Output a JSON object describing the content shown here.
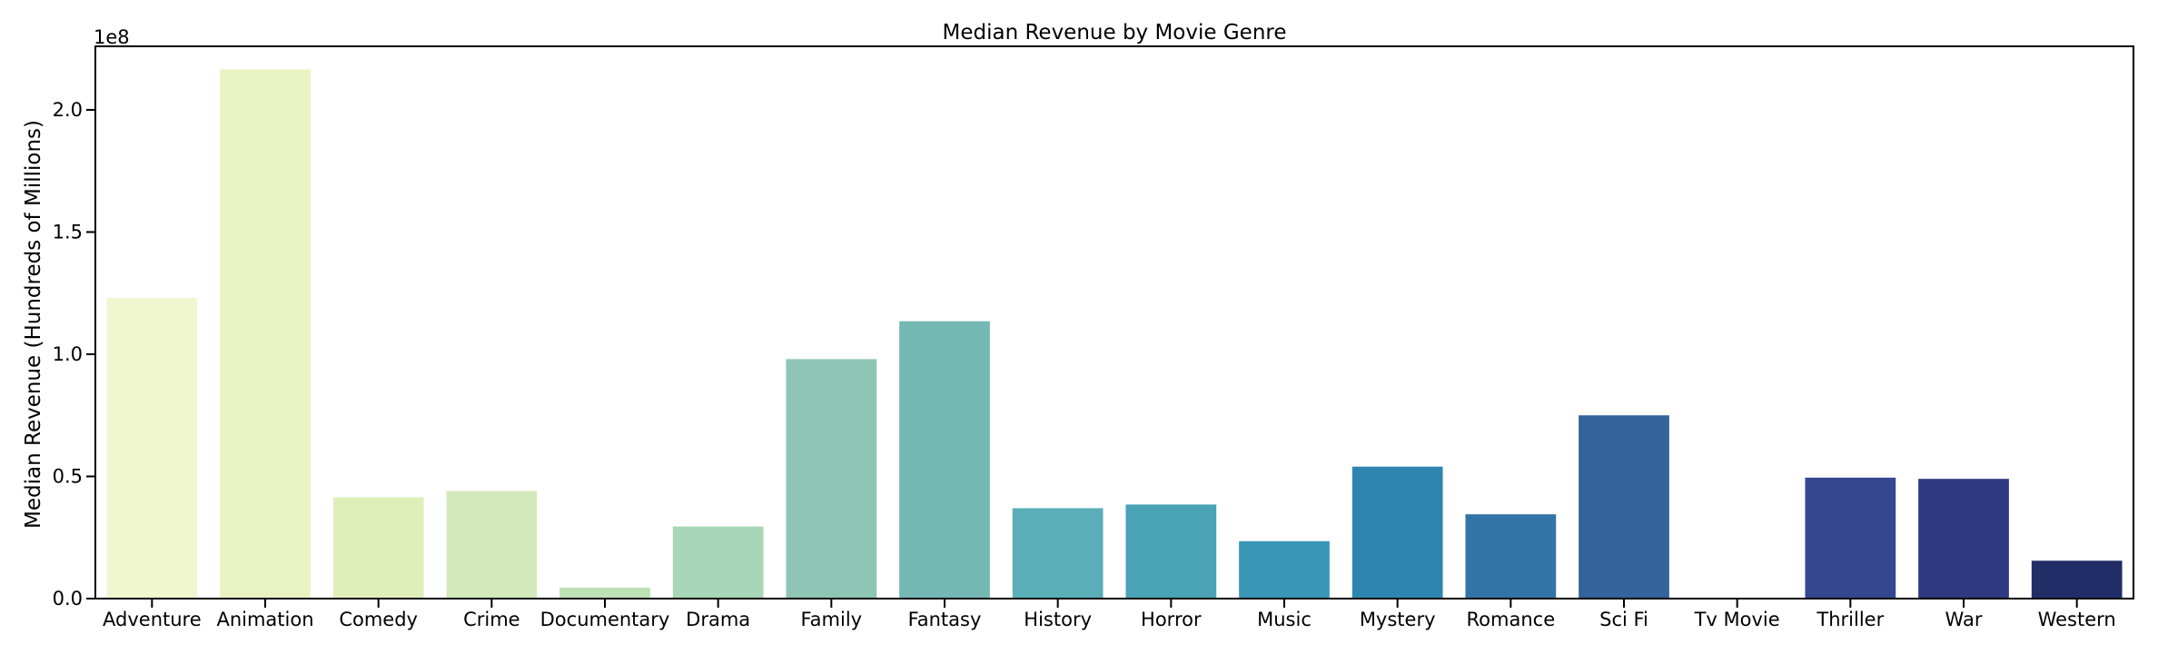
{
  "chart_data": {
    "type": "bar",
    "title": "Median Revenue by Movie Genre",
    "xlabel": "",
    "ylabel": "Median Revenue (Hundreds of Millions)",
    "offset_label": "1e8",
    "ylim": [
      0,
      2.26
    ],
    "yticks": [
      0.0,
      0.5,
      1.0,
      1.5,
      2.0
    ],
    "ytick_labels": [
      "0.0",
      "0.5",
      "1.0",
      "1.5",
      "2.0"
    ],
    "grid": false,
    "categories": [
      "Adventure",
      "Animation",
      "Comedy",
      "Crime",
      "Documentary",
      "Drama",
      "Family",
      "Fantasy",
      "History",
      "Horror",
      "Music",
      "Mystery",
      "Romance",
      "Sci Fi",
      "Tv Movie",
      "Thriller",
      "War",
      "Western"
    ],
    "values": [
      1.23,
      2.165,
      0.415,
      0.44,
      0.045,
      0.295,
      0.98,
      1.135,
      0.37,
      0.385,
      0.235,
      0.54,
      0.345,
      0.75,
      0.0,
      0.495,
      0.49,
      0.155
    ],
    "colors": [
      "#f0f6cf",
      "#e9f3c1",
      "#dfefba",
      "#d3e9bb",
      "#bde3b5",
      "#a8d6b8",
      "#8ec5b4",
      "#74b8b4",
      "#5aaeb8",
      "#4aa3b6",
      "#3996b7",
      "#2e86b0",
      "#3374a6",
      "#33649c",
      "#354c93",
      "#354791",
      "#2f3980",
      "#202d66"
    ]
  }
}
